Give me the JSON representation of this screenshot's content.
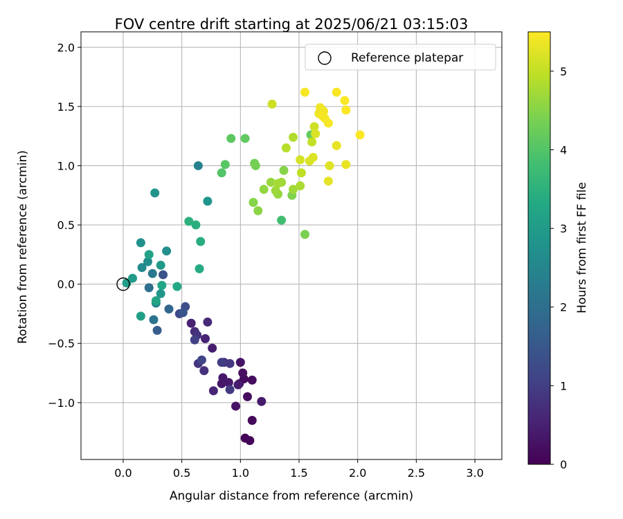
{
  "chart_data": {
    "type": "scatter",
    "title": "FOV centre drift starting at 2025/06/21 03:15:03",
    "xlabel": "Angular distance from reference (arcmin)",
    "ylabel": "Rotation from reference (arcmin)",
    "xlim": [
      -0.36,
      3.23
    ],
    "ylim": [
      -1.48,
      2.13
    ],
    "xticks": [
      "0.0",
      "0.5",
      "1.0",
      "1.5",
      "2.0",
      "2.5",
      "3.0"
    ],
    "yticks": [
      "−1.0",
      "−0.5",
      "0.0",
      "0.5",
      "1.0",
      "1.5",
      "2.0"
    ],
    "grid": true,
    "legend": {
      "placement": "top-right",
      "entries": [
        "Reference platepar"
      ]
    },
    "reference_point": {
      "x": 0.0,
      "y": 0.0
    },
    "colorbar": {
      "label": "Hours from first FF file",
      "colormap": "viridis",
      "range": [
        0,
        5.5
      ],
      "ticks": [
        "0",
        "1",
        "2",
        "3",
        "4",
        "5"
      ]
    },
    "points": [
      {
        "x": 1.04,
        "y": -1.3,
        "h": 0.05
      },
      {
        "x": 1.08,
        "y": -1.32,
        "h": 0.08
      },
      {
        "x": 1.1,
        "y": -1.15,
        "h": 0.12
      },
      {
        "x": 1.03,
        "y": -0.8,
        "h": 0.15
      },
      {
        "x": 1.1,
        "y": -0.81,
        "h": 0.18
      },
      {
        "x": 1.06,
        "y": -0.95,
        "h": 0.2
      },
      {
        "x": 1.02,
        "y": -0.75,
        "h": 0.22
      },
      {
        "x": 0.99,
        "y": -0.84,
        "h": 0.25
      },
      {
        "x": 0.96,
        "y": -1.03,
        "h": 0.28
      },
      {
        "x": 1.0,
        "y": -0.66,
        "h": 0.3
      },
      {
        "x": 0.85,
        "y": -0.79,
        "h": 0.33
      },
      {
        "x": 0.84,
        "y": -0.84,
        "h": 0.36
      },
      {
        "x": 0.9,
        "y": -0.83,
        "h": 0.38
      },
      {
        "x": 0.76,
        "y": -0.54,
        "h": 0.45
      },
      {
        "x": 1.18,
        "y": -0.99,
        "h": 0.4
      },
      {
        "x": 0.98,
        "y": -0.85,
        "h": 0.42
      },
      {
        "x": 0.58,
        "y": -0.33,
        "h": 0.5
      },
      {
        "x": 0.7,
        "y": -0.46,
        "h": 0.55
      },
      {
        "x": 0.77,
        "y": -0.9,
        "h": 0.58
      },
      {
        "x": 0.86,
        "y": -0.66,
        "h": 0.62
      },
      {
        "x": 0.72,
        "y": -0.32,
        "h": 0.65
      },
      {
        "x": 0.61,
        "y": -0.4,
        "h": 0.7
      },
      {
        "x": 0.69,
        "y": -0.73,
        "h": 0.75
      },
      {
        "x": 0.63,
        "y": -0.43,
        "h": 0.8
      },
      {
        "x": 0.64,
        "y": -0.67,
        "h": 0.85
      },
      {
        "x": 0.91,
        "y": -0.67,
        "h": 0.9
      },
      {
        "x": 0.91,
        "y": -0.89,
        "h": 0.95
      },
      {
        "x": 0.84,
        "y": -0.66,
        "h": 1.0
      },
      {
        "x": 0.61,
        "y": -0.47,
        "h": 1.05
      },
      {
        "x": 0.67,
        "y": -0.64,
        "h": 1.1
      },
      {
        "x": 0.48,
        "y": -0.25,
        "h": 1.2
      },
      {
        "x": 0.53,
        "y": -0.19,
        "h": 1.3
      },
      {
        "x": 0.34,
        "y": 0.08,
        "h": 1.4
      },
      {
        "x": 0.51,
        "y": -0.24,
        "h": 1.45
      },
      {
        "x": 0.29,
        "y": -0.39,
        "h": 1.6
      },
      {
        "x": 0.39,
        "y": -0.21,
        "h": 1.8
      },
      {
        "x": 0.22,
        "y": -0.03,
        "h": 2.0
      },
      {
        "x": 0.26,
        "y": -0.3,
        "h": 2.1
      },
      {
        "x": 0.25,
        "y": 0.09,
        "h": 2.2
      },
      {
        "x": 0.64,
        "y": 1.0,
        "h": 2.4
      },
      {
        "x": 0.28,
        "y": -0.16,
        "h": 2.5
      },
      {
        "x": 0.16,
        "y": 0.14,
        "h": 2.6
      },
      {
        "x": 0.21,
        "y": 0.19,
        "h": 2.65
      },
      {
        "x": 0.37,
        "y": 0.28,
        "h": 2.7
      },
      {
        "x": 0.15,
        "y": 0.35,
        "h": 2.75
      },
      {
        "x": 0.27,
        "y": 0.77,
        "h": 2.8
      },
      {
        "x": 0.72,
        "y": 0.7,
        "h": 2.85
      },
      {
        "x": 0.32,
        "y": -0.08,
        "h": 2.9
      },
      {
        "x": 0.32,
        "y": 0.16,
        "h": 2.95
      },
      {
        "x": 0.08,
        "y": 0.05,
        "h": 3.0
      },
      {
        "x": 0.03,
        "y": 0.01,
        "h": 3.05
      },
      {
        "x": 0.15,
        "y": -0.27,
        "h": 3.1
      },
      {
        "x": 0.22,
        "y": 0.25,
        "h": 3.15
      },
      {
        "x": 0.28,
        "y": -0.14,
        "h": 3.2
      },
      {
        "x": 0.33,
        "y": -0.01,
        "h": 3.25
      },
      {
        "x": 0.46,
        "y": -0.02,
        "h": 3.3
      },
      {
        "x": 0.65,
        "y": 0.13,
        "h": 3.35
      },
      {
        "x": 0.66,
        "y": 0.36,
        "h": 3.4
      },
      {
        "x": 0.62,
        "y": 0.5,
        "h": 3.45
      },
      {
        "x": 0.56,
        "y": 0.53,
        "h": 3.5
      },
      {
        "x": 1.35,
        "y": 0.54,
        "h": 3.8
      },
      {
        "x": 0.84,
        "y": 0.94,
        "h": 4.0
      },
      {
        "x": 0.87,
        "y": 1.01,
        "h": 4.05
      },
      {
        "x": 0.92,
        "y": 1.23,
        "h": 4.1
      },
      {
        "x": 1.04,
        "y": 1.23,
        "h": 4.15
      },
      {
        "x": 1.6,
        "y": 1.26,
        "h": 4.2
      },
      {
        "x": 1.12,
        "y": 1.02,
        "h": 4.3
      },
      {
        "x": 1.13,
        "y": 1.0,
        "h": 4.35
      },
      {
        "x": 1.55,
        "y": 0.42,
        "h": 4.4
      },
      {
        "x": 1.44,
        "y": 0.75,
        "h": 4.45
      },
      {
        "x": 1.37,
        "y": 0.96,
        "h": 4.5
      },
      {
        "x": 1.11,
        "y": 0.69,
        "h": 4.5
      },
      {
        "x": 1.15,
        "y": 0.62,
        "h": 4.55
      },
      {
        "x": 1.2,
        "y": 0.8,
        "h": 4.6
      },
      {
        "x": 1.32,
        "y": 0.76,
        "h": 4.62
      },
      {
        "x": 1.26,
        "y": 0.86,
        "h": 4.65
      },
      {
        "x": 1.3,
        "y": 0.79,
        "h": 4.68
      },
      {
        "x": 1.35,
        "y": 0.86,
        "h": 4.7
      },
      {
        "x": 1.45,
        "y": 0.8,
        "h": 4.72
      },
      {
        "x": 1.32,
        "y": 0.85,
        "h": 4.75
      },
      {
        "x": 1.51,
        "y": 0.83,
        "h": 4.8
      },
      {
        "x": 1.45,
        "y": 1.24,
        "h": 4.85
      },
      {
        "x": 1.39,
        "y": 1.15,
        "h": 4.9
      },
      {
        "x": 1.52,
        "y": 0.94,
        "h": 4.95
      },
      {
        "x": 1.61,
        "y": 1.2,
        "h": 5.0
      },
      {
        "x": 1.27,
        "y": 1.52,
        "h": 5.05
      },
      {
        "x": 1.63,
        "y": 1.33,
        "h": 5.1
      },
      {
        "x": 1.51,
        "y": 1.05,
        "h": 5.15
      },
      {
        "x": 1.59,
        "y": 1.04,
        "h": 5.18
      },
      {
        "x": 1.64,
        "y": 1.27,
        "h": 5.2
      },
      {
        "x": 1.62,
        "y": 1.07,
        "h": 5.22
      },
      {
        "x": 1.76,
        "y": 1.0,
        "h": 5.25
      },
      {
        "x": 1.75,
        "y": 0.87,
        "h": 5.28
      },
      {
        "x": 1.82,
        "y": 1.17,
        "h": 5.3
      },
      {
        "x": 1.9,
        "y": 1.01,
        "h": 5.32
      },
      {
        "x": 1.67,
        "y": 1.44,
        "h": 5.35
      },
      {
        "x": 1.68,
        "y": 1.49,
        "h": 5.38
      },
      {
        "x": 1.71,
        "y": 1.46,
        "h": 5.4
      },
      {
        "x": 1.72,
        "y": 1.4,
        "h": 5.42
      },
      {
        "x": 1.75,
        "y": 1.36,
        "h": 5.44
      },
      {
        "x": 1.55,
        "y": 1.62,
        "h": 5.45
      },
      {
        "x": 1.82,
        "y": 1.62,
        "h": 5.46
      },
      {
        "x": 1.89,
        "y": 1.55,
        "h": 5.47
      },
      {
        "x": 1.9,
        "y": 1.47,
        "h": 5.48
      },
      {
        "x": 2.02,
        "y": 1.26,
        "h": 5.49
      },
      {
        "x": 1.7,
        "y": 1.42,
        "h": 5.43
      }
    ]
  }
}
